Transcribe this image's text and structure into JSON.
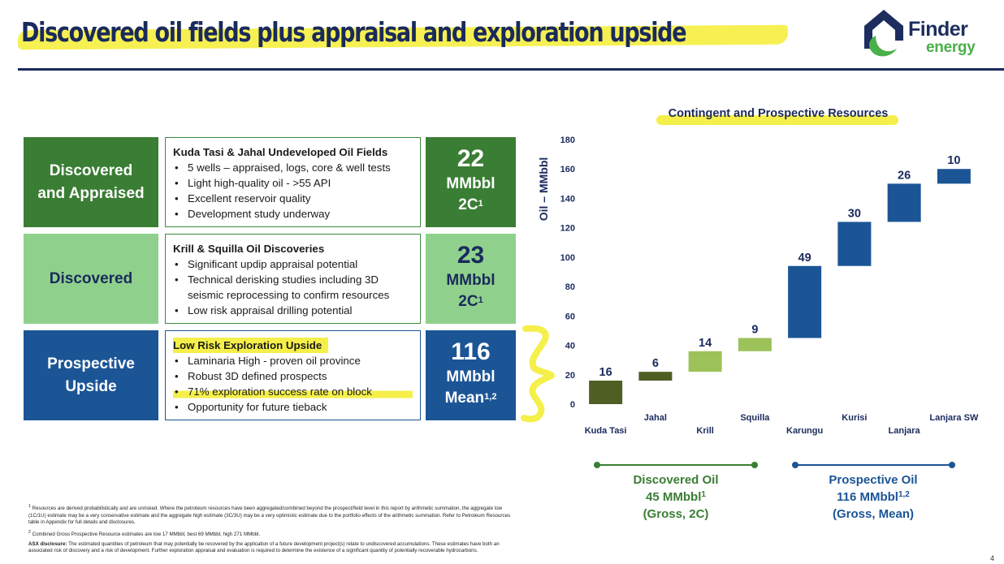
{
  "header": {
    "title": "Discovered oil fields plus appraisal and exploration upside",
    "logo_line1": "Finder",
    "logo_line2": "energy"
  },
  "rows": [
    {
      "category": "Discovered\nand Appraised",
      "category_color": "#3a7d34",
      "heading": "Kuda Tasi & Jahal Undeveloped Oil Fields",
      "bullets": [
        "5 wells – appraised, logs, core & well tests",
        "Light high-quality oil - >55 API",
        "Excellent reservoir quality",
        "Development study underway"
      ],
      "metric_value": "22",
      "metric_unit": "MMbbl",
      "metric_class": "2C",
      "metric_sup": "1",
      "metric_color": "#3a7d34"
    },
    {
      "category": "Discovered",
      "category_color": "#8fd18c",
      "heading": "Krill & Squilla Oil Discoveries",
      "bullets": [
        "Significant updip appraisal potential",
        "Technical derisking studies including 3D seismic reprocessing to confirm resources",
        "Low risk appraisal drilling potential"
      ],
      "metric_value": "23",
      "metric_unit": "MMbbl",
      "metric_class": "2C",
      "metric_sup": "1",
      "metric_color": "#8fd18c"
    },
    {
      "category": "Prospective\nUpside",
      "category_color": "#1b5596",
      "heading": "Low Risk Exploration Upside",
      "bullets": [
        "Laminaria High - proven oil province",
        "Robust 3D defined prospects",
        "71% exploration success rate on block",
        "Opportunity for future tieback"
      ],
      "metric_value": "116",
      "metric_unit": "MMbbl",
      "metric_class": "Mean",
      "metric_sup": "1,2",
      "metric_color": "#1b5596"
    }
  ],
  "chart_data": {
    "type": "bar",
    "subtype": "waterfall",
    "title": "Contingent and Prospective Resources",
    "ylabel": "Oil – MMbbl",
    "xlabel": "",
    "ylim": [
      0,
      180
    ],
    "yticks": [
      0,
      20,
      40,
      60,
      80,
      100,
      120,
      140,
      160,
      180
    ],
    "grid": false,
    "categories": [
      "Kuda Tasi",
      "Jahal",
      "Krill",
      "Squilla",
      "Karungu",
      "Kurisi",
      "Lanjara",
      "Lanjara SW"
    ],
    "values": [
      16,
      6,
      14,
      9,
      49,
      30,
      26,
      10
    ],
    "bar_colors": [
      "#4f5f24",
      "#4f5f24",
      "#9dc25a",
      "#9dc25a",
      "#1b5596",
      "#1b5596",
      "#1b5596",
      "#1b5596"
    ]
  },
  "summary": {
    "discovered": {
      "line1": "Discovered Oil",
      "line2": "45 MMbbl",
      "line2_sup": "1",
      "line3": "(Gross, 2C)",
      "color": "#3a7d34"
    },
    "prospective": {
      "line1": "Prospective Oil",
      "line2": "116 MMbbl",
      "line2_sup": "1,2",
      "line3": "(Gross, Mean)",
      "color": "#1b5596"
    }
  },
  "footnotes": {
    "note1_sup": "1",
    "note1": "Resources are derived probabilistically and are unrisked.  Where the petroleum resources have been aggregated/combined beyond the prospect/field level in this report by arithmetic summation, the aggregate low (1C/1U) estimate may be a very conservative estimate and the aggregate high estimate (3C/3U) may be a very optimistic estimate due to the portfolio effects of the arithmetic summation.  Refer to Petroleum Resources table in Appendix for full details and disclosures.",
    "note2_sup": "2",
    "note2": "Combined Gross Prospective Resource estimates are low 17 MMbbl, best 69 MMbbl, high 271 MMbbl.",
    "asx_label": "ASX disclosure:",
    "asx_text": "The estimated quantities of petroleum that may potentially be recovered by the application of a future development project(s) relate to undiscovered accumulations.  These estimates have both an associated risk of discovery and a risk of development.  Further exploration appraisal and evaluation is required to determine the existence of a significant quantity of potentially recoverable hydrocarbons."
  },
  "page_number": "4"
}
